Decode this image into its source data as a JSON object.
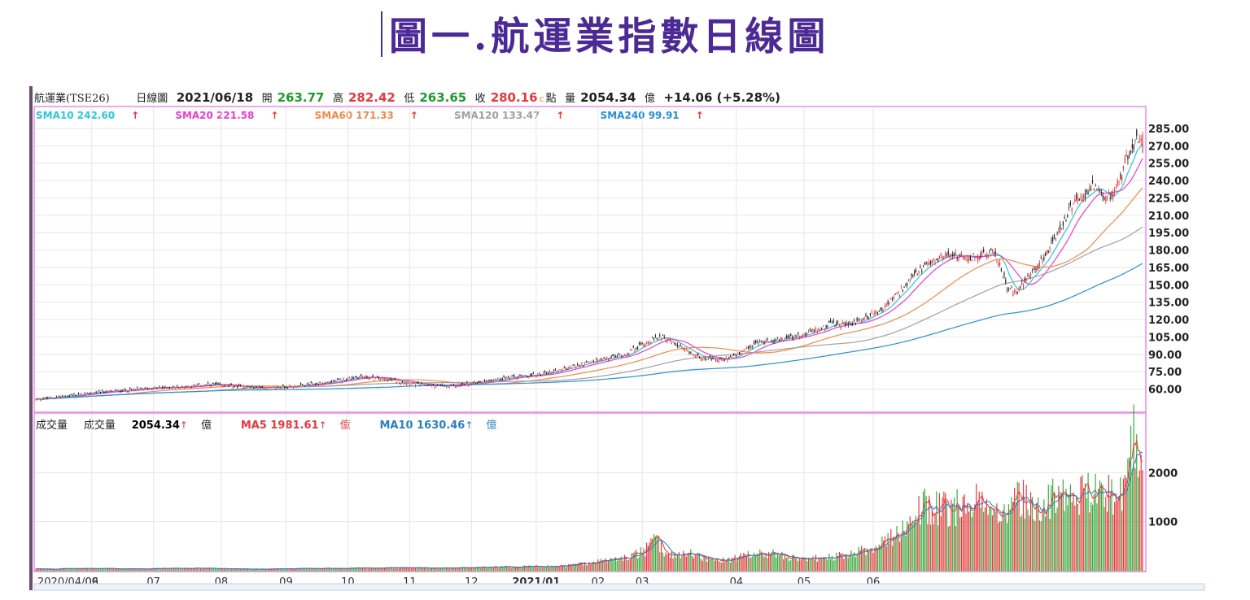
{
  "figure_title": "圖一.航運業指數日線圖",
  "info": {
    "name": "航運業(TSE26)",
    "chart_kind": "日線圖",
    "date": "2021/06/18",
    "open_label": "開",
    "open": "263.77",
    "high_label": "高",
    "high": "282.42",
    "low_label": "低",
    "low": "263.65",
    "close_label": "收",
    "close": "280.16",
    "close_suffix": "c",
    "point_label": "點",
    "vol_label": "量",
    "vol": "2054.34",
    "vol_unit": "億",
    "change": "+14.06 (+5.28%)"
  },
  "sma": [
    {
      "label": "SMA10 242.60",
      "arrow": "↑",
      "color": "#2fc6d6"
    },
    {
      "label": "SMA20 221.58",
      "arrow": "↑",
      "color": "#e83fd0"
    },
    {
      "label": "SMA60 171.33",
      "arrow": "↑",
      "color": "#f08a4b"
    },
    {
      "label": "SMA120 133.47",
      "arrow": "↑",
      "color": "#a0a0a0"
    },
    {
      "label": "SMA240 99.91",
      "arrow": "↑",
      "color": "#2a8fd6"
    }
  ],
  "volume_legend": {
    "title": "成交量",
    "vol_label": "成交量",
    "vol_value": "2054.34",
    "vol_arrow": "↑",
    "vol_unit": "億",
    "ma5_label": "MA5 1981.61",
    "ma5_arrow": "↑",
    "ma5_unit": "億",
    "ma10_label": "MA10 1630.46",
    "ma10_arrow": "↑",
    "ma10_unit": "億"
  },
  "colors": {
    "up": "#e8373d",
    "down": "#1f1f1f",
    "vol_up": "#e8373d",
    "vol_down": "#3aa83a",
    "border": "#e98de9",
    "grid": "#e6e6e6"
  },
  "chart_data": {
    "type": "candlestick",
    "price_axis": {
      "min": 45,
      "max": 292,
      "ticks": [
        "285.00",
        "270.00",
        "255.00",
        "240.00",
        "225.00",
        "210.00",
        "195.00",
        "180.00",
        "165.00",
        "150.00",
        "135.00",
        "120.00",
        "105.00",
        "90.00",
        "75.00",
        "60.00"
      ]
    },
    "volume_axis": {
      "min": 0,
      "max": 3050,
      "ticks": [
        "2000",
        "1000"
      ]
    },
    "x_ticks": [
      "2020/04/09",
      "06",
      "07",
      "08",
      "09",
      "10",
      "11",
      "12",
      "2021/01",
      "02",
      "03",
      "04",
      "05",
      "06"
    ],
    "last_bar": {
      "open": 263.77,
      "high": 282.42,
      "low": 263.65,
      "close": 280.16,
      "volume": 2054.34
    },
    "series": [
      {
        "name": "SMA10",
        "value": 242.6
      },
      {
        "name": "SMA20",
        "value": 221.58
      },
      {
        "name": "SMA60",
        "value": 171.33
      },
      {
        "name": "SMA120",
        "value": 133.47
      },
      {
        "name": "SMA240",
        "value": 99.91
      }
    ],
    "volume_ma": [
      {
        "name": "MA5",
        "value": 1981.61
      },
      {
        "name": "MA10",
        "value": 1630.46
      }
    ],
    "close_path": [
      [
        0,
        51
      ],
      [
        20,
        54
      ],
      [
        40,
        57
      ],
      [
        60,
        59
      ],
      [
        80,
        61
      ],
      [
        100,
        62
      ],
      [
        120,
        64
      ],
      [
        140,
        62
      ],
      [
        160,
        61
      ],
      [
        180,
        63
      ],
      [
        200,
        66
      ],
      [
        220,
        71
      ],
      [
        240,
        68
      ],
      [
        260,
        64
      ],
      [
        280,
        62
      ],
      [
        300,
        66
      ],
      [
        320,
        70
      ],
      [
        340,
        72
      ],
      [
        360,
        78
      ],
      [
        380,
        84
      ],
      [
        400,
        90
      ],
      [
        414,
        100
      ],
      [
        426,
        106
      ],
      [
        436,
        97
      ],
      [
        446,
        90
      ],
      [
        456,
        86
      ],
      [
        466,
        85
      ],
      [
        478,
        90
      ],
      [
        490,
        100
      ],
      [
        500,
        102
      ],
      [
        520,
        106
      ],
      [
        540,
        116
      ],
      [
        554,
        116
      ],
      [
        564,
        122
      ],
      [
        576,
        130
      ],
      [
        588,
        145
      ],
      [
        600,
        162
      ],
      [
        610,
        170
      ],
      [
        620,
        178
      ],
      [
        632,
        172
      ],
      [
        642,
        176
      ],
      [
        652,
        178
      ],
      [
        660,
        148
      ],
      [
        666,
        142
      ],
      [
        672,
        155
      ],
      [
        680,
        165
      ],
      [
        688,
        180
      ],
      [
        696,
        198
      ],
      [
        704,
        218
      ],
      [
        712,
        228
      ],
      [
        718,
        234
      ],
      [
        726,
        224
      ],
      [
        734,
        232
      ],
      [
        740,
        256
      ],
      [
        746,
        271
      ],
      [
        752,
        280.16
      ]
    ],
    "volume_path": [
      [
        0,
        35
      ],
      [
        30,
        45
      ],
      [
        60,
        40
      ],
      [
        100,
        50
      ],
      [
        150,
        35
      ],
      [
        200,
        50
      ],
      [
        240,
        60
      ],
      [
        280,
        55
      ],
      [
        320,
        80
      ],
      [
        360,
        100
      ],
      [
        380,
        180
      ],
      [
        400,
        260
      ],
      [
        414,
        400
      ],
      [
        420,
        640
      ],
      [
        430,
        320
      ],
      [
        446,
        360
      ],
      [
        456,
        240
      ],
      [
        470,
        200
      ],
      [
        480,
        300
      ],
      [
        500,
        360
      ],
      [
        520,
        220
      ],
      [
        540,
        280
      ],
      [
        554,
        320
      ],
      [
        564,
        450
      ],
      [
        576,
        550
      ],
      [
        586,
        760
      ],
      [
        594,
        1050
      ],
      [
        604,
        1320
      ],
      [
        614,
        1300
      ],
      [
        622,
        1160
      ],
      [
        632,
        1500
      ],
      [
        640,
        1480
      ],
      [
        648,
        1040
      ],
      [
        656,
        1120
      ],
      [
        666,
        1640
      ],
      [
        676,
        1260
      ],
      [
        686,
        1420
      ],
      [
        696,
        1500
      ],
      [
        706,
        1560
      ],
      [
        716,
        1580
      ],
      [
        726,
        1600
      ],
      [
        736,
        1320
      ],
      [
        744,
        2950
      ],
      [
        752,
        2054.34
      ]
    ],
    "total_bars": 753
  }
}
